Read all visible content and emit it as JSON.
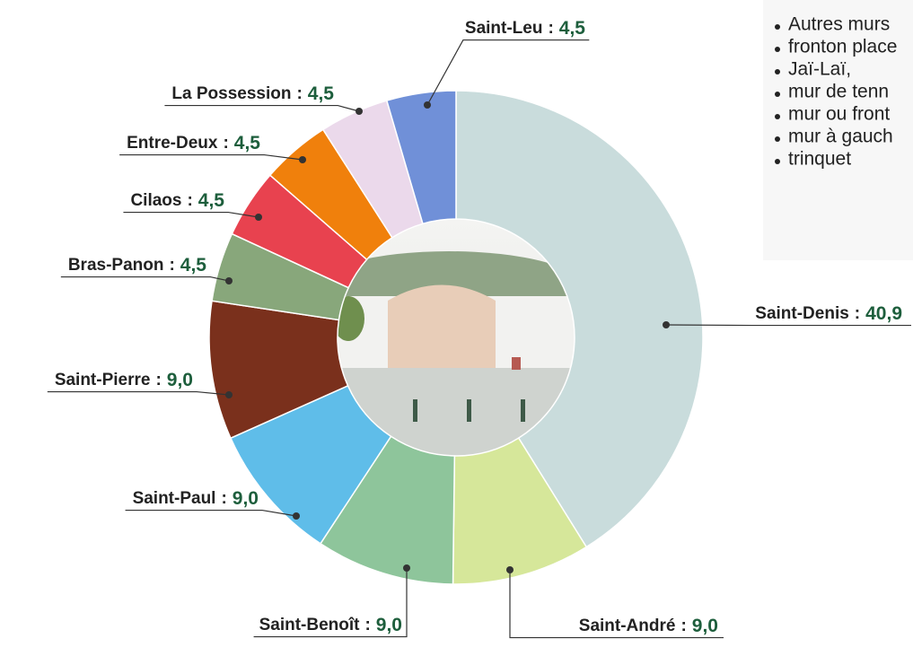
{
  "chart_data": {
    "type": "donut",
    "categories": [
      "Saint-Denis",
      "Saint-André",
      "Saint-Benoît",
      "Saint-Paul",
      "Saint-Pierre",
      "Bras-Panon",
      "Cilaos",
      "Entre-Deux",
      "La Possession",
      "Saint-Leu"
    ],
    "values": [
      40.9,
      9.0,
      9.0,
      9.0,
      9.0,
      4.5,
      4.5,
      4.5,
      4.5,
      4.5
    ],
    "value_labels": [
      "40,9",
      "9,0",
      "9,0",
      "9,0",
      "9,0",
      "4,5",
      "4,5",
      "4,5",
      "4,5",
      "4,5"
    ],
    "separator": ":",
    "colors": [
      "#c9dcdc",
      "#d6e79a",
      "#8ec59b",
      "#5fbde9",
      "#7a301c",
      "#88a77b",
      "#e8424f",
      "#f0800c",
      "#ebd9eb",
      "#7090d8"
    ],
    "notes": [
      "Autres murs",
      "fronton place",
      "Jaï-Laï,",
      "mur de tenn",
      "mur ou front",
      "mur à gauch",
      "trinquet"
    ]
  }
}
